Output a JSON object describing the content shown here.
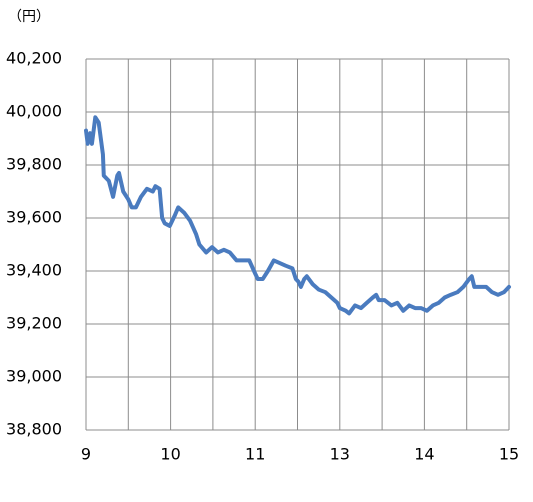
{
  "chart_data": {
    "type": "line",
    "unit_label": "（円）",
    "x_break": [
      11.5,
      12.5
    ],
    "xlim": [
      9,
      15
    ],
    "xticks": [
      9,
      10,
      11,
      13,
      14,
      15
    ],
    "xgrid": [
      9.5,
      10.5,
      11.5,
      13.5,
      14.5
    ],
    "ylim": [
      38800,
      40200
    ],
    "yticks": [
      {
        "value": 38800,
        "label": "38,800"
      },
      {
        "value": 39000,
        "label": "39,000"
      },
      {
        "value": 39200,
        "label": "39,200"
      },
      {
        "value": 39400,
        "label": "39,400"
      },
      {
        "value": 39600,
        "label": "39,600"
      },
      {
        "value": 39800,
        "label": "39,800"
      },
      {
        "value": 40000,
        "label": "40,000"
      },
      {
        "value": 40200,
        "label": "40,200"
      }
    ],
    "grid": true,
    "series": [
      {
        "color": "#4a7bbf",
        "x": [
          9.0,
          9.02,
          9.05,
          9.07,
          9.11,
          9.15,
          9.2,
          9.21,
          9.27,
          9.32,
          9.37,
          9.39,
          9.44,
          9.5,
          9.54,
          9.59,
          9.65,
          9.72,
          9.79,
          9.82,
          9.87,
          9.9,
          9.93,
          9.99,
          10.05,
          10.09,
          10.16,
          10.23,
          10.3,
          10.34,
          10.42,
          10.49,
          10.56,
          10.63,
          10.7,
          10.78,
          10.86,
          10.93,
          11.0,
          11.03,
          11.09,
          11.15,
          11.22,
          11.29,
          11.36,
          11.44,
          11.48,
          12.51,
          12.54,
          12.58,
          12.61,
          12.68,
          12.75,
          12.83,
          12.9,
          12.97,
          13.0,
          13.07,
          13.11,
          13.18,
          13.25,
          13.32,
          13.39,
          13.43,
          13.46,
          13.53,
          13.61,
          13.68,
          13.75,
          13.82,
          13.89,
          13.96,
          14.03,
          14.1,
          14.17,
          14.24,
          14.31,
          14.39,
          14.46,
          14.53,
          14.56,
          14.59,
          14.66,
          14.73,
          14.8,
          14.87,
          14.94,
          15.0
        ],
        "values": [
          39930,
          39880,
          39920,
          39880,
          39980,
          39960,
          39840,
          39760,
          39740,
          39680,
          39760,
          39770,
          39700,
          39670,
          39640,
          39640,
          39680,
          39710,
          39700,
          39720,
          39710,
          39600,
          39580,
          39570,
          39610,
          39640,
          39620,
          39590,
          39540,
          39500,
          39470,
          39490,
          39470,
          39480,
          39470,
          39440,
          39440,
          39440,
          39390,
          39370,
          39370,
          39400,
          39440,
          39430,
          39420,
          39410,
          39370,
          39360,
          39340,
          39370,
          39380,
          39350,
          39330,
          39320,
          39300,
          39280,
          39260,
          39250,
          39240,
          39270,
          39260,
          39280,
          39300,
          39310,
          39290,
          39290,
          39270,
          39280,
          39250,
          39270,
          39260,
          39260,
          39250,
          39270,
          39280,
          39300,
          39310,
          39320,
          39340,
          39370,
          39380,
          39340,
          39340,
          39340,
          39320,
          39310,
          39320,
          39340
        ]
      }
    ]
  }
}
